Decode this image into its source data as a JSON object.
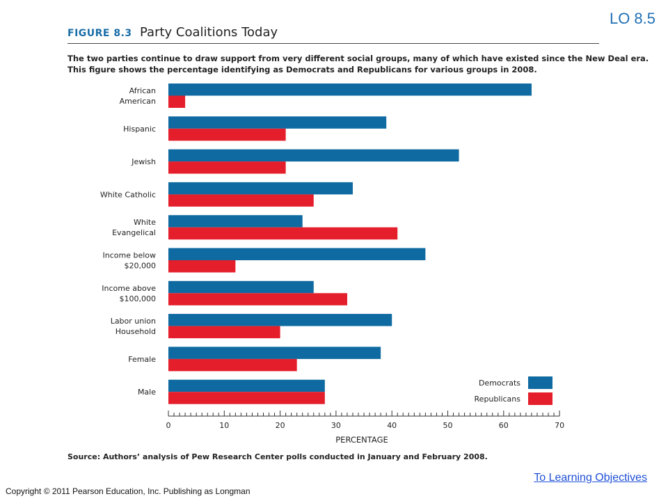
{
  "slide": {
    "lo_label": "LO 8.5",
    "link_text": "To Learning Objectives",
    "copyright": "Copyright © 2011 Pearson Education, Inc. Publishing as Longman"
  },
  "figure": {
    "number": "FIGURE 8.3",
    "title": "Party Coalitions Today",
    "caption_lines": [
      "The two parties continue to draw support from very different social groups, many of which have existed since the New Deal era.",
      "This figure shows the percentage identifying as Democrats and Republicans for various groups in 2008."
    ],
    "source": "Source: Authors’ analysis of Pew Research Center polls conducted in January and February 2008."
  },
  "chart_data": {
    "type": "bar",
    "orientation": "horizontal",
    "categories": [
      [
        "African",
        "American"
      ],
      [
        "Hispanic"
      ],
      [
        "Jewish"
      ],
      [
        "White Catholic"
      ],
      [
        "White",
        "Evangelical"
      ],
      [
        "Income below",
        "$20,000"
      ],
      [
        "Income above",
        "$100,000"
      ],
      [
        "Labor union",
        "Household"
      ],
      [
        "Female"
      ],
      [
        "Male"
      ]
    ],
    "series": [
      {
        "name": "Democrats",
        "color": "#0e6aa0",
        "values": [
          65,
          39,
          52,
          33,
          24,
          46,
          26,
          40,
          38,
          28
        ]
      },
      {
        "name": "Republicans",
        "color": "#e41e2b",
        "values": [
          3,
          21,
          21,
          26,
          41,
          12,
          32,
          20,
          23,
          28
        ]
      }
    ],
    "xlabel": "PERCENTAGE",
    "xlim": [
      0,
      70
    ],
    "xticks": [
      0,
      10,
      20,
      30,
      40,
      50,
      60,
      70
    ],
    "minor_tick_step": 1,
    "grid": false,
    "legend_position": "bottom-right"
  }
}
